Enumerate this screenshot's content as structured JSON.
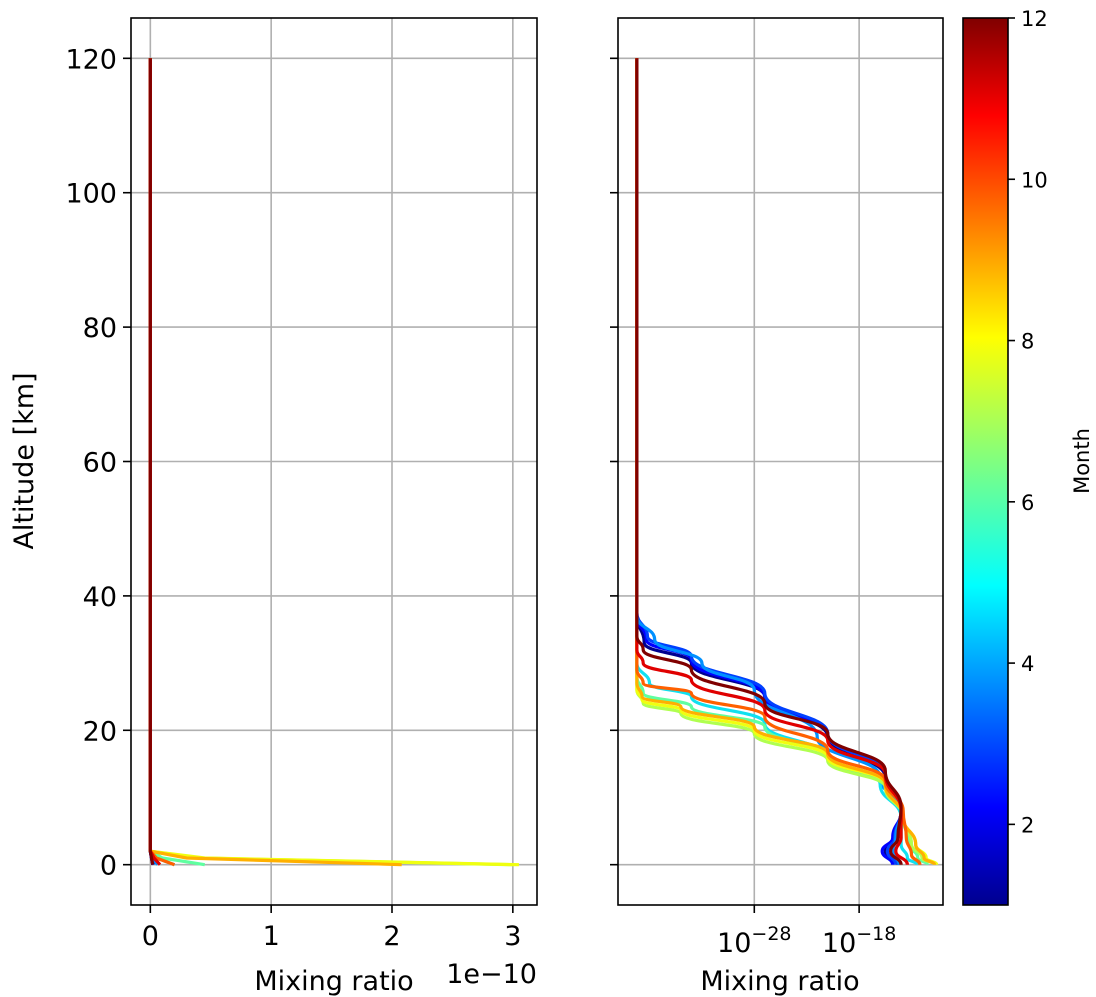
{
  "chart_data": [
    {
      "type": "line",
      "panel": "left",
      "xlabel": "Mixing ratio",
      "ylabel": "Altitude [km]",
      "x_scale": "linear",
      "offset_text": "1e−10",
      "xlim": [
        -0.16,
        3.2
      ],
      "ylim": [
        -6,
        126
      ],
      "x_ticks": [
        0,
        1,
        2,
        3
      ],
      "x_tick_labels": [
        "0",
        "1",
        "2",
        "3"
      ],
      "y_ticks": [
        0,
        20,
        40,
        60,
        80,
        100,
        120
      ],
      "y_tick_labels": [
        "0",
        "20",
        "40",
        "60",
        "80",
        "100",
        "120"
      ],
      "grid": true,
      "units_note": "x values in units of 1e-10",
      "series": [
        {
          "month": 1,
          "color": "#00008f",
          "points": [
            [
              0,
              120
            ],
            [
              0,
              2
            ],
            [
              0.01,
              1
            ],
            [
              0.02,
              0
            ]
          ]
        },
        {
          "month": 2,
          "color": "#0000ff",
          "points": [
            [
              0,
              120
            ],
            [
              0,
              2
            ],
            [
              0.01,
              1
            ],
            [
              0.02,
              0
            ]
          ]
        },
        {
          "month": 3,
          "color": "#0040ff",
          "points": [
            [
              0,
              120
            ],
            [
              0,
              2
            ],
            [
              0.01,
              1
            ],
            [
              0.03,
              0
            ]
          ]
        },
        {
          "month": 4,
          "color": "#0090ff",
          "points": [
            [
              0,
              120
            ],
            [
              0,
              2
            ],
            [
              0.02,
              1
            ],
            [
              0.06,
              0
            ]
          ]
        },
        {
          "month": 5,
          "color": "#10e0f0",
          "points": [
            [
              0,
              120
            ],
            [
              0,
              2
            ],
            [
              0.05,
              1
            ],
            [
              0.2,
              0
            ]
          ]
        },
        {
          "month": 6,
          "color": "#5fffa0",
          "points": [
            [
              0,
              120
            ],
            [
              0,
              2
            ],
            [
              0.1,
              1
            ],
            [
              0.45,
              0
            ]
          ]
        },
        {
          "month": 7,
          "color": "#b0ff50",
          "points": [
            [
              0,
              120
            ],
            [
              0,
              2
            ],
            [
              0.4,
              1
            ],
            [
              3.0,
              0
            ]
          ]
        },
        {
          "month": 8,
          "color": "#f0ff10",
          "points": [
            [
              0,
              120
            ],
            [
              0,
              2
            ],
            [
              0.45,
              1
            ],
            [
              3.05,
              0
            ]
          ]
        },
        {
          "month": 9,
          "color": "#ffb000",
          "points": [
            [
              0,
              120
            ],
            [
              0,
              2
            ],
            [
              0.3,
              1
            ],
            [
              2.08,
              0
            ]
          ]
        },
        {
          "month": 10,
          "color": "#ff6000",
          "points": [
            [
              0,
              120
            ],
            [
              0,
              2
            ],
            [
              0.05,
              1
            ],
            [
              0.2,
              0
            ]
          ]
        },
        {
          "month": 11,
          "color": "#e00000",
          "points": [
            [
              0,
              120
            ],
            [
              0,
              2
            ],
            [
              0.03,
              1
            ],
            [
              0.08,
              0
            ]
          ]
        },
        {
          "month": 12,
          "color": "#800000",
          "points": [
            [
              0,
              120
            ],
            [
              0,
              2
            ],
            [
              0.01,
              1
            ],
            [
              0.02,
              0
            ]
          ]
        }
      ]
    },
    {
      "type": "line",
      "panel": "right",
      "xlabel": "Mixing ratio",
      "x_scale": "log",
      "xlim_log10": [
        -41,
        -10
      ],
      "ylim": [
        -6,
        126
      ],
      "x_ticks_log10": [
        -28,
        -18
      ],
      "x_tick_base": "10",
      "x_tick_exponents": [
        "−28",
        "−18"
      ],
      "y_ticks": [
        0,
        20,
        40,
        60,
        80,
        100,
        120
      ],
      "grid": true,
      "series": [
        {
          "month": 1,
          "color": "#00008f",
          "points": [
            [
              -39.2,
              120
            ],
            [
              -39.2,
              37
            ],
            [
              -38.5,
              33
            ],
            [
              -34,
              30
            ],
            [
              -27,
              25
            ],
            [
              -21,
              19
            ],
            [
              -15.5,
              13
            ],
            [
              -14,
              8
            ],
            [
              -14.6,
              4
            ],
            [
              -15.5,
              2
            ],
            [
              -14.3,
              0
            ]
          ]
        },
        {
          "month": 2,
          "color": "#0000ff",
          "points": [
            [
              -39.2,
              120
            ],
            [
              -39.2,
              37
            ],
            [
              -38.3,
              33.5
            ],
            [
              -34,
              30.5
            ],
            [
              -27,
              25
            ],
            [
              -21,
              19.5
            ],
            [
              -15.5,
              13.5
            ],
            [
              -14,
              8
            ],
            [
              -14.8,
              4
            ],
            [
              -15.8,
              2
            ],
            [
              -14.8,
              0
            ]
          ]
        },
        {
          "month": 3,
          "color": "#0040ff",
          "points": [
            [
              -39.2,
              120
            ],
            [
              -39.2,
              37.5
            ],
            [
              -38.2,
              34
            ],
            [
              -34,
              31
            ],
            [
              -27,
              25.5
            ],
            [
              -21,
              19.5
            ],
            [
              -15.5,
              13.5
            ],
            [
              -14,
              8
            ],
            [
              -14.6,
              4
            ],
            [
              -15.3,
              2
            ],
            [
              -14.5,
              0
            ]
          ]
        },
        {
          "month": 4,
          "color": "#0090ff",
          "points": [
            [
              -39.2,
              120
            ],
            [
              -39.2,
              37
            ],
            [
              -37.5,
              33.5
            ],
            [
              -33,
              30
            ],
            [
              -28,
              26
            ],
            [
              -22,
              19
            ],
            [
              -16,
              13
            ],
            [
              -14,
              8
            ],
            [
              -14.5,
              4
            ],
            [
              -14.8,
              2
            ],
            [
              -14.2,
              0
            ]
          ]
        },
        {
          "month": 5,
          "color": "#10e0f0",
          "points": [
            [
              -39.2,
              120
            ],
            [
              -39.2,
              30
            ],
            [
              -38,
              27
            ],
            [
              -34,
              25
            ],
            [
              -27,
              21
            ],
            [
              -21,
              16
            ],
            [
              -16,
              12
            ],
            [
              -14,
              7
            ],
            [
              -14,
              3
            ],
            [
              -13.4,
              1
            ],
            [
              -12.5,
              0
            ]
          ]
        },
        {
          "month": 6,
          "color": "#5fffa0",
          "points": [
            [
              -39.2,
              120
            ],
            [
              -39.2,
              28
            ],
            [
              -38.6,
              25.5
            ],
            [
              -34,
              23.5
            ],
            [
              -27,
              20.5
            ],
            [
              -21,
              16
            ],
            [
              -15.5,
              12
            ],
            [
              -13.8,
              7
            ],
            [
              -13.2,
              3
            ],
            [
              -12.4,
              1
            ],
            [
              -11.5,
              0
            ]
          ]
        },
        {
          "month": 7,
          "color": "#b0ff50",
          "points": [
            [
              -39.2,
              120
            ],
            [
              -39.2,
              26
            ],
            [
              -38.6,
              24
            ],
            [
              -35,
              22.5
            ],
            [
              -28,
              19.5
            ],
            [
              -21,
              15.5
            ],
            [
              -15.5,
              11.5
            ],
            [
              -13.8,
              7
            ],
            [
              -13,
              3
            ],
            [
              -12,
              1
            ],
            [
              -10.8,
              0
            ]
          ]
        },
        {
          "month": 8,
          "color": "#f0ff10",
          "points": [
            [
              -39.2,
              120
            ],
            [
              -39.2,
              26
            ],
            [
              -38.7,
              24.5
            ],
            [
              -35,
              23
            ],
            [
              -28,
              20
            ],
            [
              -21,
              16
            ],
            [
              -15.5,
              12
            ],
            [
              -13.8,
              7
            ],
            [
              -12.6,
              3
            ],
            [
              -11.6,
              1
            ],
            [
              -10.6,
              0
            ]
          ]
        },
        {
          "month": 9,
          "color": "#ffb000",
          "points": [
            [
              -39.2,
              120
            ],
            [
              -39.2,
              27
            ],
            [
              -38.7,
              25
            ],
            [
              -35,
              23.5
            ],
            [
              -28,
              20.5
            ],
            [
              -21,
              16.5
            ],
            [
              -15.5,
              12
            ],
            [
              -13.8,
              7
            ],
            [
              -12.6,
              3
            ],
            [
              -11.8,
              1
            ],
            [
              -10.8,
              0
            ]
          ]
        },
        {
          "month": 10,
          "color": "#ff6000",
          "points": [
            [
              -39.2,
              120
            ],
            [
              -39.2,
              29
            ],
            [
              -38.6,
              27
            ],
            [
              -34,
              25.5
            ],
            [
              -27,
              22
            ],
            [
              -21,
              17
            ],
            [
              -15.5,
              12.5
            ],
            [
              -13.8,
              8
            ],
            [
              -13.5,
              4
            ],
            [
              -13,
              1.5
            ],
            [
              -12.2,
              0
            ]
          ]
        },
        {
          "month": 11,
          "color": "#e00000",
          "points": [
            [
              -39.2,
              120
            ],
            [
              -39.2,
              32
            ],
            [
              -38.6,
              30
            ],
            [
              -34,
              27.5
            ],
            [
              -27,
              23
            ],
            [
              -21,
              18.5
            ],
            [
              -15.5,
              13.5
            ],
            [
              -14,
              8
            ],
            [
              -14,
              4
            ],
            [
              -14.5,
              2
            ],
            [
              -13.4,
              0
            ]
          ]
        },
        {
          "month": 12,
          "color": "#800000",
          "points": [
            [
              -39.2,
              120
            ],
            [
              -39.2,
              34
            ],
            [
              -38.6,
              32
            ],
            [
              -34,
              29
            ],
            [
              -27,
              24
            ],
            [
              -21,
              19.5
            ],
            [
              -15.5,
              14
            ],
            [
              -14,
              8.5
            ],
            [
              -14.3,
              4
            ],
            [
              -15,
              2
            ],
            [
              -14,
              0
            ]
          ]
        }
      ]
    }
  ],
  "colorbar": {
    "label": "Month",
    "min": 1,
    "max": 12,
    "colormap": "jet",
    "ticks": [
      2,
      4,
      6,
      8,
      10,
      12
    ],
    "tick_labels": [
      "2",
      "4",
      "6",
      "8",
      "10",
      "12"
    ]
  }
}
